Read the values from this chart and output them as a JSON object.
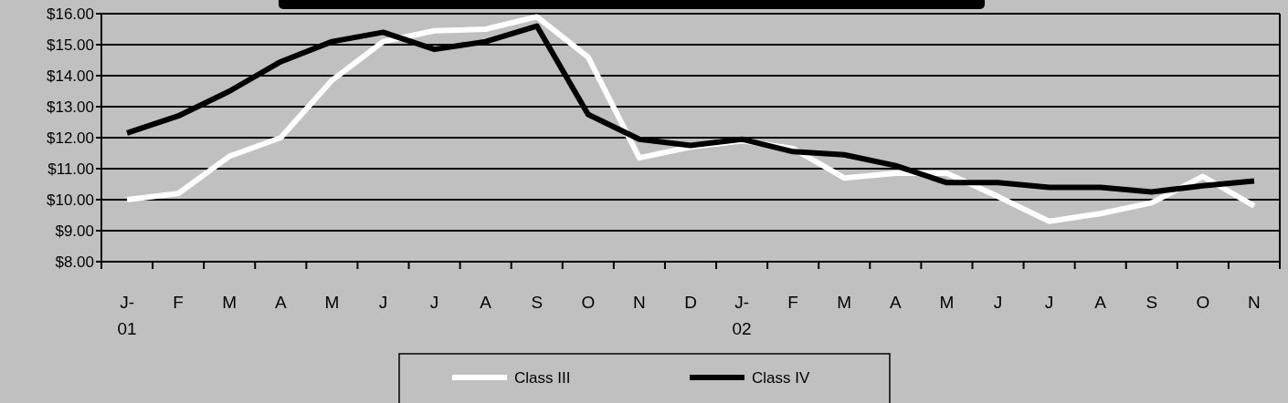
{
  "chart_data": {
    "type": "line",
    "categories": [
      "J-01",
      "F",
      "M",
      "A",
      "M",
      "J",
      "J",
      "A",
      "S",
      "O",
      "N",
      "D",
      "J-02",
      "F",
      "M",
      "A",
      "M",
      "J",
      "J",
      "A",
      "S",
      "O",
      "N"
    ],
    "series": [
      {
        "name": "Class III",
        "color": "#ffffff",
        "values": [
          10.0,
          10.2,
          11.4,
          12.0,
          13.85,
          15.1,
          15.45,
          15.5,
          15.9,
          14.6,
          11.35,
          11.7,
          11.9,
          11.65,
          10.7,
          10.85,
          10.85,
          10.1,
          9.3,
          9.55,
          9.9,
          10.75,
          9.8
        ]
      },
      {
        "name": "Class IV",
        "color": "#000000",
        "values": [
          12.15,
          12.7,
          13.5,
          14.45,
          15.1,
          15.4,
          14.85,
          15.1,
          15.6,
          12.75,
          11.95,
          11.75,
          11.95,
          11.55,
          11.45,
          11.1,
          10.55,
          10.55,
          10.4,
          10.4,
          10.25,
          10.45,
          10.6
        ]
      }
    ],
    "ylim": [
      8,
      16
    ],
    "yticks": [
      {
        "value": 8,
        "label": "$8.00"
      },
      {
        "value": 9,
        "label": "$9.00"
      },
      {
        "value": 10,
        "label": "$10.00"
      },
      {
        "value": 11,
        "label": "$11.00"
      },
      {
        "value": 12,
        "label": "$12.00"
      },
      {
        "value": 13,
        "label": "$13.00"
      },
      {
        "value": 14,
        "label": "$14.00"
      },
      {
        "value": 15,
        "label": "$15.00"
      },
      {
        "value": 16,
        "label": "$16.00"
      }
    ],
    "grid": "y",
    "legend": "bottom",
    "marker": "none",
    "line_style": "solid"
  }
}
